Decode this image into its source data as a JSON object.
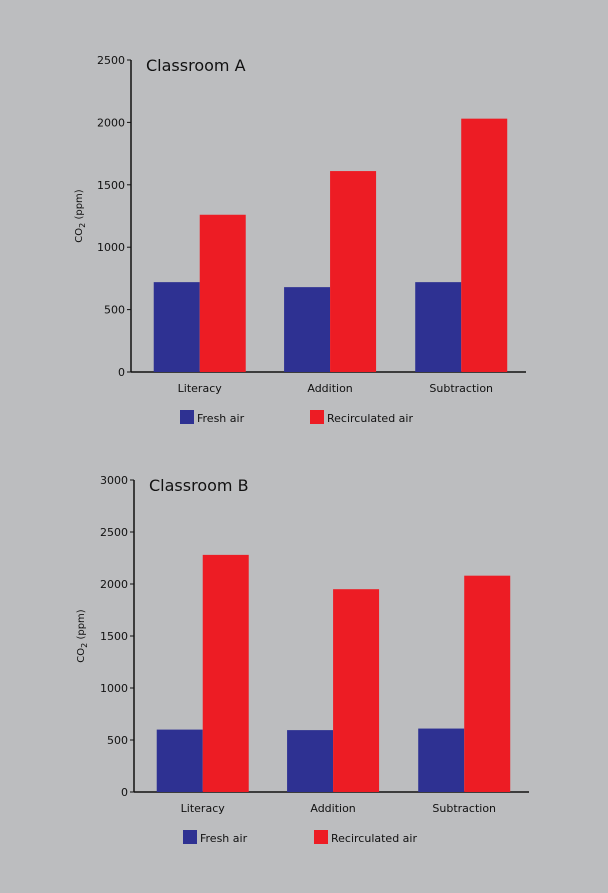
{
  "chart_data": [
    {
      "type": "bar",
      "title": "Classroom A",
      "ylabel": "CO",
      "ylabel_sub": "2",
      "ylabel_unit": " (ppm)",
      "categories": [
        "Literacy",
        "Addition",
        "Subtraction"
      ],
      "ylim": [
        0,
        2500
      ],
      "yticks": [
        0,
        500,
        1000,
        1500,
        2000,
        2500
      ],
      "series": [
        {
          "name": "Fresh air",
          "color": "#2e3192",
          "values": [
            720,
            680,
            720
          ]
        },
        {
          "name": "Recirculated air",
          "color": "#ed1c24",
          "values": [
            1260,
            1610,
            2030
          ]
        }
      ]
    },
    {
      "type": "bar",
      "title": "Classroom B",
      "ylabel": "CO",
      "ylabel_sub": "2",
      "ylabel_unit": " (ppm)",
      "categories": [
        "Literacy",
        "Addition",
        "Subtraction"
      ],
      "ylim": [
        0,
        3000
      ],
      "yticks": [
        0,
        500,
        1000,
        1500,
        2000,
        2500,
        3000
      ],
      "series": [
        {
          "name": "Fresh air",
          "color": "#2e3192",
          "values": [
            600,
            595,
            610
          ]
        },
        {
          "name": "Recirculated air",
          "color": "#ed1c24",
          "values": [
            2280,
            1950,
            2080
          ]
        }
      ]
    }
  ]
}
